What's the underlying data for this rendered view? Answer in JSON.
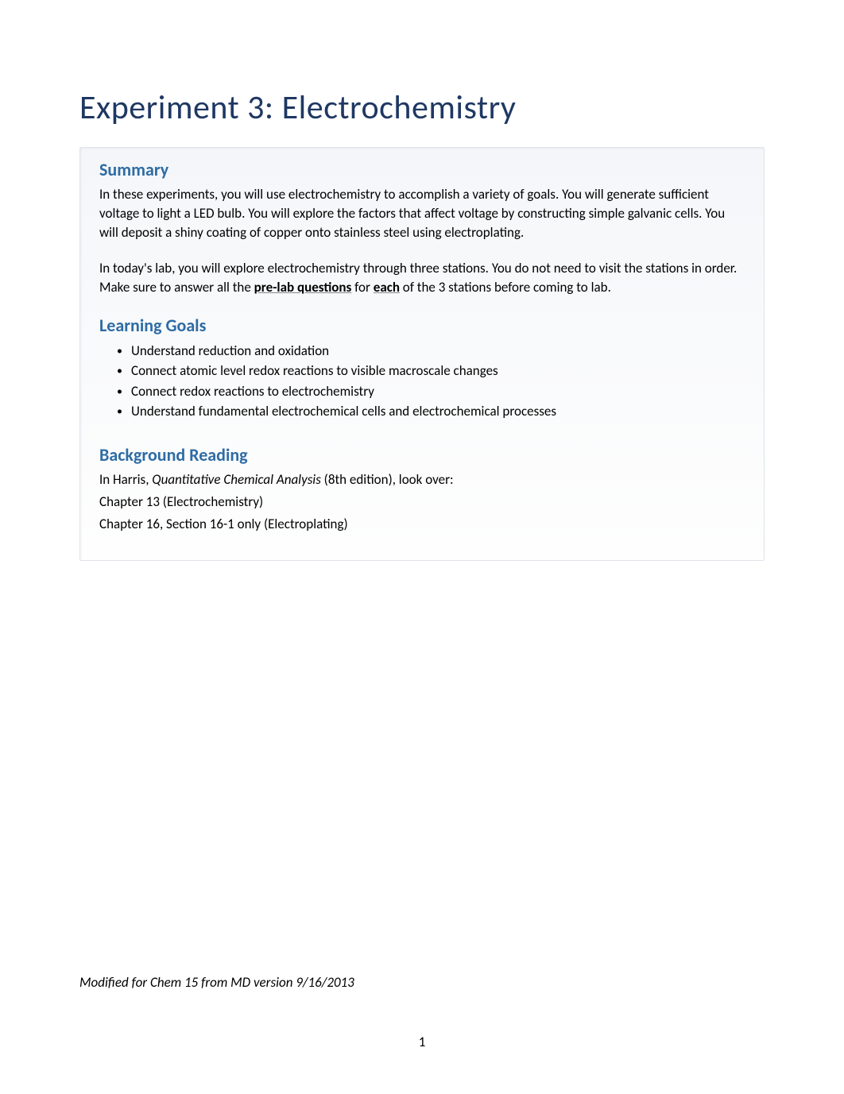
{
  "title": "Experiment 3: Electrochemistry",
  "summary": {
    "heading": "Summary",
    "para1": "In these experiments, you will use electrochemistry to accomplish a variety of goals. You will generate sufficient voltage to light a LED bulb. You will explore the factors that affect voltage by constructing simple galvanic cells. You will deposit a shiny coating of copper onto stainless steel using electroplating.",
    "para2_part1": "In today's lab, you will explore electrochemistry through three stations. You do not need to visit the stations in order. Make sure to answer all the ",
    "para2_bold1": "pre-lab questions",
    "para2_part2": " for ",
    "para2_bold2": "each",
    "para2_part3": " of the 3 stations before coming to lab."
  },
  "learning_goals": {
    "heading": "Learning Goals",
    "items": [
      "Understand reduction and oxidation",
      "Connect atomic level redox reactions to visible macroscale changes",
      "Connect redox reactions to electrochemistry",
      "Understand fundamental electrochemical cells and electrochemical processes"
    ]
  },
  "background": {
    "heading": "Background Reading",
    "line1_part1": "In Harris, ",
    "line1_italic": "Quantitative Chemical Analysis",
    "line1_part2": " (8th edition), look over:",
    "line2": "Chapter 13 (Electrochemistry)",
    "line3": "Chapter 16, Section 16-1 only (Electroplating)"
  },
  "footer": "Modified for Chem 15 from MD version 9/16/2013",
  "page_number": "1"
}
